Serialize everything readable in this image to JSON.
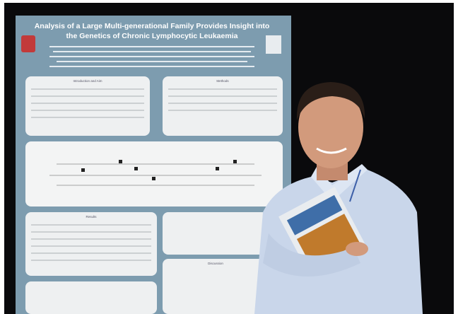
{
  "poster": {
    "title_lines": [
      "Analysis of a Large Multi-generational Family Provides Insight into",
      "the Genetics of Chronic Lymphocytic Leukaemia"
    ],
    "sections": [
      "Introduction and Aim",
      "Methods",
      "Results",
      "Discussion"
    ]
  }
}
